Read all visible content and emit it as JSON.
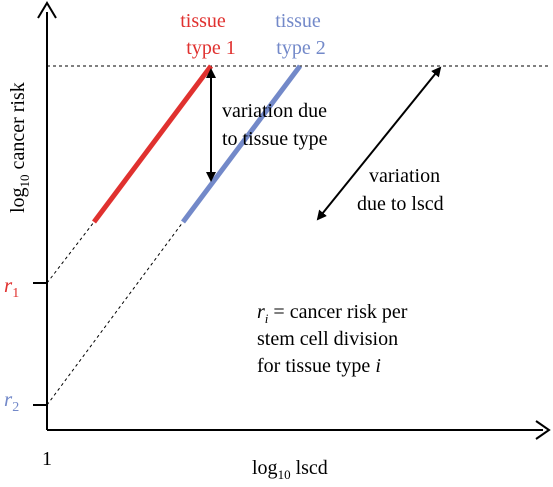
{
  "axes": {
    "x_label_base": "log",
    "x_label_sub": "10",
    "x_label_rest": " lscd",
    "y_label_base": "log",
    "y_label_sub": "10",
    "y_label_rest": " cancer risk",
    "x_origin_tick": "1"
  },
  "levels": {
    "r1_base": "r",
    "r1_sub": "1",
    "r2_base": "r",
    "r2_sub": "2"
  },
  "tissues": {
    "t1_line1": "tissue",
    "t1_line2": "type 1",
    "t2_line1": "tissue",
    "t2_line2": "type 2"
  },
  "annotations": {
    "variation_tissue_1": "variation due",
    "variation_tissue_2": "to tissue type",
    "variation_lscd_1": "variation",
    "variation_lscd_2": "due to lscd"
  },
  "definition": {
    "r_base": "r",
    "r_sub": "i",
    "line1_rest": " = cancer risk per",
    "line2": "stem cell division",
    "line3_pre": "for tissue type ",
    "line3_var": "i"
  },
  "colors": {
    "tissue1": "#e0312f",
    "tissue2": "#7389c9",
    "axis": "#000000"
  }
}
